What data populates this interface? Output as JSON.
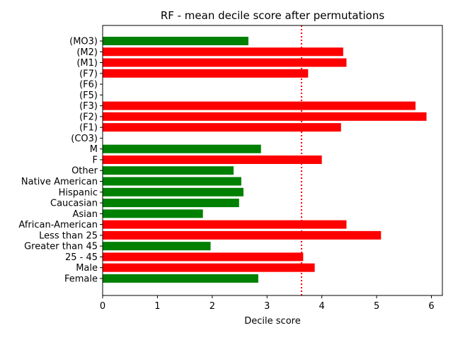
{
  "chart_data": {
    "type": "bar",
    "orientation": "horizontal",
    "title": "RF - mean decile score after permutations",
    "xlabel": "Decile score",
    "ylabel": "",
    "xlim": [
      0,
      6.2
    ],
    "xticks": [
      0,
      1,
      2,
      3,
      4,
      5,
      6
    ],
    "grid": false,
    "reference_line": {
      "x": 3.63,
      "color": "#ff0000",
      "style": "dotted"
    },
    "bar_colors": {
      "above_reference": "#ff0000",
      "below_reference": "#008000"
    },
    "categories": [
      "(MO3)",
      "(M2)",
      "(M1)",
      "(F7)",
      "(F6)",
      "(F5)",
      "(F3)",
      "(F2)",
      "(F1)",
      "(CO3)",
      "M",
      "F",
      "Other",
      "Native American",
      "Hispanic",
      "Caucasian",
      "Asian",
      "African-American",
      "Less than 25",
      "Greater than 45",
      "25 - 45",
      "Male",
      "Female"
    ],
    "values": [
      2.66,
      4.39,
      4.45,
      3.75,
      null,
      null,
      5.71,
      5.91,
      4.35,
      null,
      2.89,
      4.0,
      2.39,
      2.53,
      2.57,
      2.49,
      1.83,
      4.45,
      5.08,
      1.97,
      3.66,
      3.87,
      2.84
    ],
    "colors": [
      "#008000",
      "#ff0000",
      "#ff0000",
      "#ff0000",
      null,
      null,
      "#ff0000",
      "#ff0000",
      "#ff0000",
      null,
      "#008000",
      "#ff0000",
      "#008000",
      "#008000",
      "#008000",
      "#008000",
      "#008000",
      "#ff0000",
      "#ff0000",
      "#008000",
      "#ff0000",
      "#ff0000",
      "#008000"
    ]
  }
}
